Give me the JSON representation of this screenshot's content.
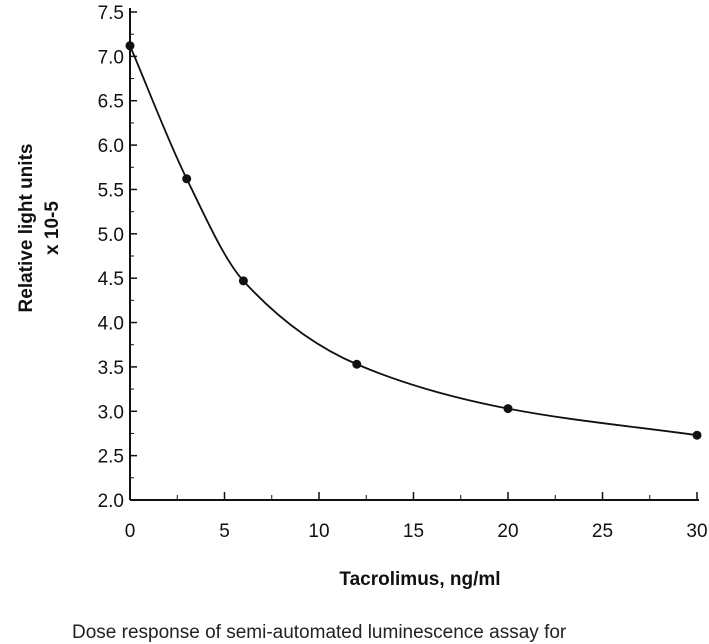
{
  "chart_data": {
    "type": "line",
    "title": "",
    "xlabel": "Tacrolimus, ng/ml",
    "ylabel": [
      "Relative light units",
      "x 10-5"
    ],
    "xlim": [
      0,
      30
    ],
    "ylim": [
      2.0,
      7.5
    ],
    "x_ticks": [
      0,
      5,
      10,
      15,
      20,
      25,
      30
    ],
    "x_tick_labels": [
      "0",
      "5",
      "10",
      "15",
      "20",
      "25",
      "30"
    ],
    "y_ticks": [
      2.0,
      2.5,
      3.0,
      3.5,
      4.0,
      4.5,
      5.0,
      5.5,
      6.0,
      6.5,
      7.0,
      7.5
    ],
    "y_tick_labels": [
      "2.0",
      "2.5",
      "3.0",
      "3.5",
      "4.0",
      "4.5",
      "5.0",
      "5.5",
      "6.0",
      "6.5",
      "7.0",
      "7.5"
    ],
    "grid": false,
    "series": [
      {
        "x": [
          0,
          3,
          6,
          12,
          20,
          30
        ],
        "y": [
          7.12,
          5.62,
          4.47,
          3.53,
          3.03,
          2.73
        ]
      }
    ],
    "caption": "Dose response of semi-automated luminescence assay for"
  }
}
